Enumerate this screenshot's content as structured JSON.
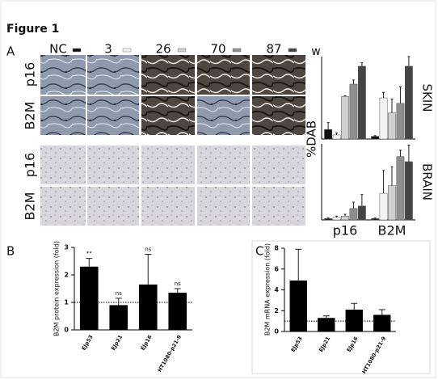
{
  "figure_title": "Figure 1",
  "panel_labels": [
    "A",
    "B",
    "C"
  ],
  "chart_data": [
    {
      "type": "bar",
      "title": "SKIN",
      "ylabel": "%DAB",
      "legend_unit": "w",
      "ylim": [
        0,
        60
      ],
      "series": [
        {
          "name": "NC",
          "color": "#111111",
          "values": [
            7,
            2
          ],
          "errors": [
            5,
            0.5
          ]
        },
        {
          "name": "3",
          "color": "#f4f4f4",
          "values": [
            3,
            30
          ],
          "errors": [
            1.5,
            4
          ]
        },
        {
          "name": "26",
          "color": "#cfcfcf",
          "values": [
            31,
            19
          ],
          "errors": [
            0.5,
            10
          ]
        },
        {
          "name": "70",
          "color": "#8e8e8e",
          "values": [
            40,
            26
          ],
          "errors": [
            3,
            12
          ]
        },
        {
          "name": "87",
          "color": "#444444",
          "values": [
            53,
            53
          ],
          "errors": [
            2.5,
            7
          ]
        }
      ]
    },
    {
      "type": "bar",
      "title": "BRAIN",
      "categories": [
        "p16",
        "B2M"
      ],
      "ylim": [
        0,
        60
      ],
      "series": [
        {
          "color": "#111111",
          "values": [
            1,
            1
          ],
          "errors": [
            0.5,
            0.5
          ]
        },
        {
          "color": "#f4f4f4",
          "values": [
            2,
            21
          ],
          "errors": [
            1,
            18
          ]
        },
        {
          "color": "#cfcfcf",
          "values": [
            3,
            27
          ],
          "errors": [
            1.5,
            15
          ]
        },
        {
          "color": "#8e8e8e",
          "values": [
            9,
            50
          ],
          "errors": [
            5,
            5
          ]
        },
        {
          "color": "#444444",
          "values": [
            11,
            46
          ],
          "errors": [
            9,
            13
          ]
        }
      ]
    },
    {
      "type": "bar",
      "ylabel": "B2M protein expression (fold)",
      "categories": [
        "EJp53",
        "EJp21",
        "EJp16",
        "HT1080-p21-9"
      ],
      "values": [
        2.3,
        0.9,
        1.65,
        1.35
      ],
      "errors": [
        0.3,
        0.25,
        1.1,
        0.15
      ],
      "annotations": [
        "**",
        "ns",
        "ns",
        "ns"
      ],
      "color": "#000000",
      "reference_line": 1,
      "ylim": [
        0,
        3
      ],
      "yticks": [
        0,
        1,
        2,
        3
      ]
    },
    {
      "type": "bar",
      "ylabel": "B2M mRNA expression (fold)",
      "categories": [
        "EJp53",
        "EJp21",
        "EJp16",
        "HT1080-p21-9"
      ],
      "values": [
        4.9,
        1.3,
        2.1,
        1.6
      ],
      "errors": [
        3.0,
        0.2,
        0.6,
        0.5
      ],
      "color": "#000000",
      "reference_line": 1,
      "ylim": [
        0,
        8
      ],
      "yticks": [
        0,
        2,
        4,
        6,
        8
      ]
    }
  ]
}
